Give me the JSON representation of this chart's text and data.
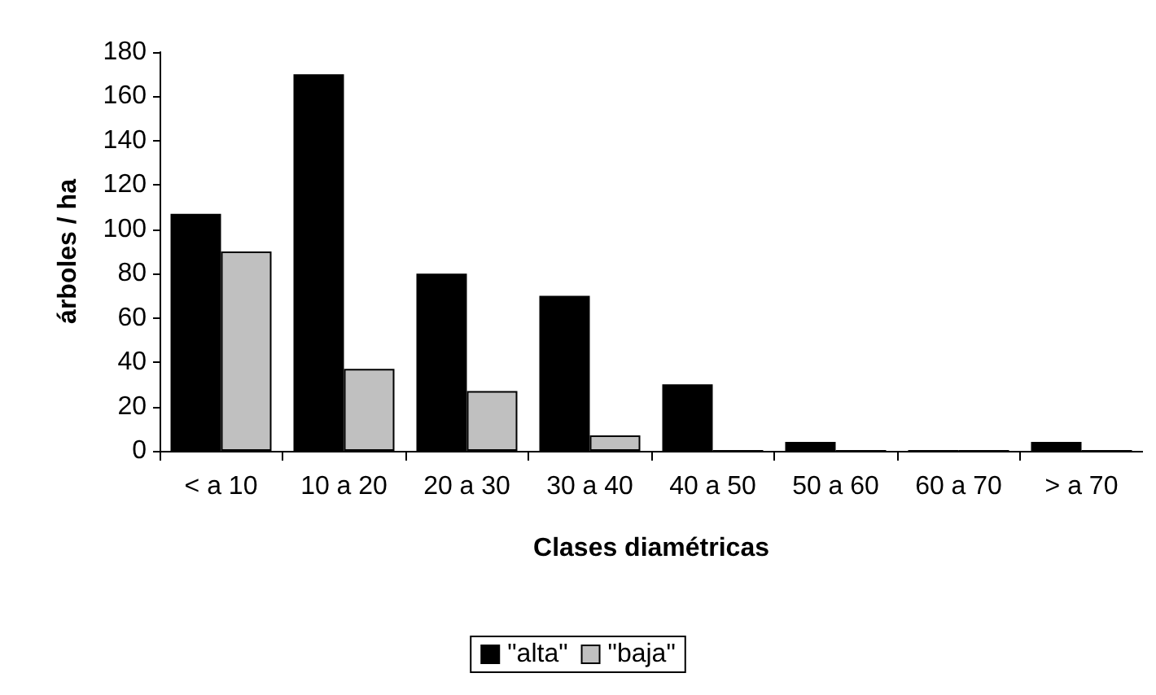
{
  "chart_data": {
    "type": "bar",
    "xlabel": "Clases diamétricas",
    "ylabel": "árboles / ha",
    "categories": [
      "< a 10",
      "10 a 20",
      "20 a 30",
      "30 a 40",
      "40 a 50",
      "50 a 60",
      "60 a 70",
      "> a 70"
    ],
    "series": [
      {
        "name": "\"alta\"",
        "color": "#000000",
        "values": [
          107,
          170,
          80,
          70,
          30,
          4,
          0,
          4
        ]
      },
      {
        "name": "\"baja\"",
        "color": "#c0c0c0",
        "values": [
          90,
          37,
          27,
          7,
          0,
          0,
          0,
          0
        ]
      }
    ],
    "ylim": [
      0,
      180
    ],
    "yticks": [
      0,
      20,
      40,
      60,
      80,
      100,
      120,
      140,
      160,
      180
    ],
    "grid": false,
    "legend": "bottom"
  }
}
